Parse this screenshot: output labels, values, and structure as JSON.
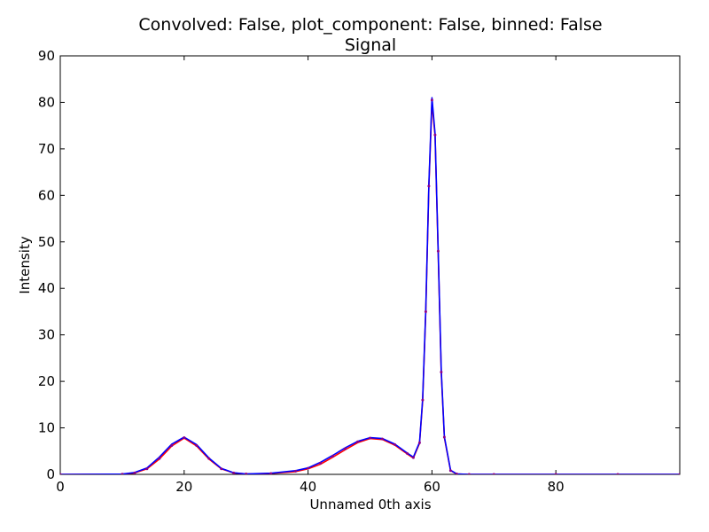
{
  "chart_data": {
    "type": "line",
    "title": "Convolved: False, plot_component: False, binned: False",
    "subtitle": "Signal",
    "xlabel": "Unnamed 0th axis",
    "ylabel": "Intensity",
    "xlim": [
      0,
      100
    ],
    "ylim": [
      0,
      90
    ],
    "x_ticks": [
      0,
      20,
      40,
      60,
      80
    ],
    "y_ticks": [
      0,
      10,
      20,
      30,
      40,
      50,
      60,
      70,
      80,
      90
    ],
    "grid": false,
    "legend": "none",
    "colors": {
      "data": "#0000ff",
      "model": "#ff0000",
      "markers": "#8b008b"
    },
    "series": [
      {
        "style": "points",
        "x": [
          0,
          10,
          12,
          14,
          16,
          18,
          20,
          22,
          24,
          26,
          28,
          30,
          34,
          38,
          40,
          42,
          44,
          46,
          48,
          50,
          52,
          54,
          56,
          57,
          58,
          58.5,
          59,
          59.5,
          60,
          60.5,
          61,
          61.5,
          62,
          63,
          64,
          66,
          70,
          80,
          90,
          100
        ],
        "y": [
          0,
          0.05,
          0.3,
          1.2,
          3.4,
          6.2,
          7.9,
          6.2,
          3.4,
          1.2,
          0.3,
          0.1,
          0.2,
          0.7,
          1.3,
          2.4,
          3.9,
          5.5,
          7.0,
          7.8,
          7.6,
          6.4,
          4.5,
          3.6,
          6.8,
          16.0,
          35.0,
          62.0,
          80.5,
          73.0,
          48.0,
          22.0,
          8.0,
          0.8,
          0.1,
          0,
          0,
          0,
          0,
          0
        ]
      },
      {
        "style": "line",
        "x": [
          0,
          10,
          12,
          14,
          16,
          18,
          20,
          22,
          24,
          26,
          28,
          30,
          34,
          38,
          40,
          42,
          44,
          46,
          48,
          50,
          52,
          54,
          56,
          57,
          58,
          58.5,
          59,
          59.5,
          60,
          60.5,
          61,
          61.5,
          62,
          63,
          64,
          66,
          70,
          80,
          90,
          100
        ],
        "y": [
          0,
          0.05,
          0.3,
          1.2,
          3.3,
          6.1,
          7.8,
          6.1,
          3.3,
          1.2,
          0.3,
          0.1,
          0.2,
          0.6,
          1.2,
          2.2,
          3.7,
          5.3,
          6.8,
          7.7,
          7.5,
          6.3,
          4.4,
          3.5,
          6.7,
          15.8,
          34.8,
          61.8,
          80.0,
          72.8,
          47.8,
          21.8,
          7.9,
          0.8,
          0.1,
          0,
          0,
          0,
          0,
          0
        ]
      },
      {
        "style": "line",
        "x": [
          0,
          10,
          12,
          14,
          16,
          18,
          20,
          22,
          24,
          26,
          28,
          30,
          34,
          38,
          40,
          42,
          44,
          46,
          48,
          50,
          52,
          54,
          56,
          57,
          58,
          58.5,
          59,
          59.5,
          60,
          60.5,
          61,
          61.5,
          62,
          63,
          64,
          66,
          70,
          80,
          90,
          100
        ],
        "y": [
          0,
          0.05,
          0.4,
          1.4,
          3.7,
          6.5,
          8.0,
          6.4,
          3.5,
          1.3,
          0.35,
          0.1,
          0.25,
          0.8,
          1.4,
          2.6,
          4.1,
          5.7,
          7.1,
          7.9,
          7.7,
          6.5,
          4.6,
          3.7,
          6.9,
          16.2,
          35.3,
          62.3,
          81.0,
          73.3,
          48.3,
          22.3,
          8.1,
          0.9,
          0.1,
          0,
          0,
          0,
          0,
          0
        ]
      }
    ]
  }
}
